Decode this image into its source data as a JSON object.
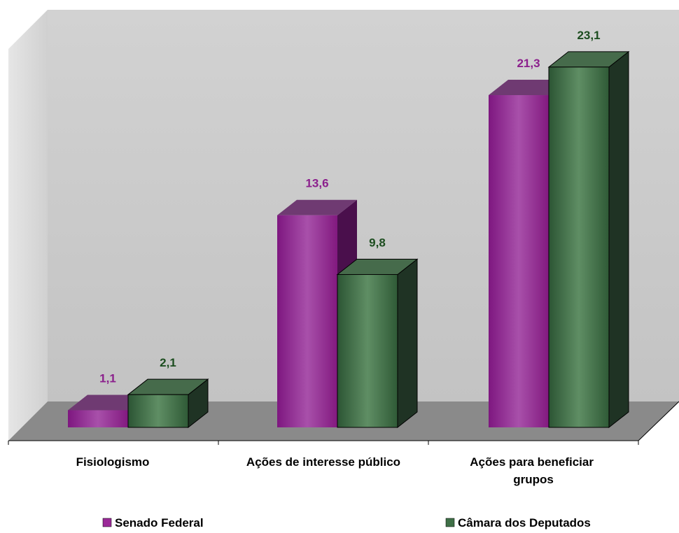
{
  "chart_data": {
    "type": "bar",
    "categories": [
      "Fisiologismo",
      "Ações de interesse público",
      "Ações para beneficiar grupos"
    ],
    "series": [
      {
        "name": "Senado Federal",
        "values": [
          1.1,
          13.6,
          21.3
        ],
        "value_labels": [
          "1,1",
          "13,6",
          "21,3"
        ]
      },
      {
        "name": "Câmara dos Deputados",
        "values": [
          2.1,
          9.8,
          23.1
        ],
        "value_labels": [
          "2,1",
          "9,8",
          "23,1"
        ]
      }
    ],
    "ylim": [
      0,
      25
    ],
    "grid": false,
    "legend_position": "bottom",
    "colors": {
      "senado_face": "#9b2a98",
      "senado_label": "#8b1f8c",
      "camara_face": "#3f7047",
      "camara_label": "#1c4d1f",
      "wall": "#c8c8c8",
      "floor": "#8a8a8a"
    }
  }
}
